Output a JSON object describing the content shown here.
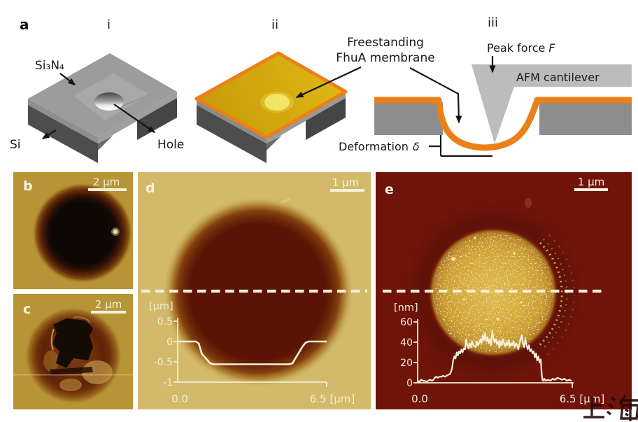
{
  "panel_a": {
    "label": "a",
    "step_i": {
      "label": "i",
      "layer_top": "Si₃N₄",
      "layer_base": "Si",
      "hole": "Hole"
    },
    "step_ii": {
      "label": "ii",
      "annotation_line1": "Freestanding",
      "annotation_line2": "FhuA membrane"
    },
    "step_iii": {
      "label": "iii",
      "peak_force": "Peak force",
      "force_symbol": "F",
      "cantilever": "AFM cantilever",
      "deformation": "Deformation",
      "delta_symbol": "δ"
    }
  },
  "panel_b": {
    "label": "b",
    "scale_bar": "2 µm"
  },
  "panel_c": {
    "label": "c",
    "scale_bar": "2 µm"
  },
  "panel_d": {
    "label": "d",
    "scale_bar": "1 µm"
  },
  "panel_e": {
    "label": "e",
    "scale_bar": "1 µm"
  },
  "watermark": "上海",
  "colors": {
    "afm_gold_bg": "#b79435",
    "afm_khaki_bg": "#d2ba6a",
    "afm_dark_red_bg": "#701409",
    "membrane_orange": "#ea8118",
    "membrane_gold_top": "#d3a70d",
    "silicon_gray": "#4d4d4d",
    "nitride_gray": "#9c9c9c",
    "cantilever_gray": "#bcbcbc",
    "profile_line": "#f5efda"
  },
  "chart_data": [
    {
      "type": "line",
      "panel": "d",
      "y_axis_label": "[µm]",
      "y_ticks": [
        0.5,
        0,
        -0.5,
        -1
      ],
      "y_tick_labels": [
        "0.5",
        "0",
        "-0.5",
        "-1"
      ],
      "x_start_label": "0.0",
      "x_end_label": "6.5 [µm]",
      "xlim": [
        0,
        6.5
      ],
      "ylim": [
        -1,
        0.5
      ],
      "x": [
        0,
        0.8,
        0.92,
        1.05,
        1.42,
        1.55,
        4.85,
        5.0,
        5.45,
        5.58,
        5.72,
        6.5
      ],
      "y": [
        0,
        0,
        -0.05,
        -0.3,
        -0.54,
        -0.56,
        -0.56,
        -0.54,
        -0.12,
        -0.03,
        0,
        0
      ]
    },
    {
      "type": "line",
      "panel": "e",
      "y_axis_label": "[nm]",
      "y_ticks": [
        60,
        40,
        20,
        0
      ],
      "y_tick_labels": [
        "60",
        "40",
        "20",
        "0"
      ],
      "x_start_label": "0.0",
      "x_end_label": "6.5 [µm]",
      "xlim": [
        0,
        6.5
      ],
      "ylim": [
        0,
        60
      ],
      "x": [
        0,
        0.07,
        0.15,
        0.22,
        0.3,
        0.37,
        0.45,
        0.52,
        0.6,
        0.67,
        0.72,
        0.78,
        0.85,
        0.92,
        1.0,
        1.08,
        1.15,
        1.22,
        1.3,
        1.38,
        1.45,
        1.5,
        1.55,
        1.6,
        1.65,
        1.7,
        1.75,
        1.8,
        1.85,
        1.9,
        1.95,
        2.0,
        2.05,
        2.1,
        2.15,
        2.2,
        2.25,
        2.3,
        2.35,
        2.4,
        2.45,
        2.5,
        2.55,
        2.6,
        2.65,
        2.7,
        2.75,
        2.8,
        2.85,
        2.9,
        2.95,
        3.0,
        3.05,
        3.1,
        3.15,
        3.2,
        3.25,
        3.3,
        3.35,
        3.4,
        3.45,
        3.5,
        3.55,
        3.6,
        3.65,
        3.7,
        3.75,
        3.8,
        3.85,
        3.9,
        3.95,
        4.0,
        4.05,
        4.1,
        4.15,
        4.2,
        4.25,
        4.3,
        4.35,
        4.4,
        4.45,
        4.5,
        4.55,
        4.6,
        4.65,
        4.7,
        4.75,
        4.8,
        4.85,
        4.9,
        4.95,
        5.0,
        5.05,
        5.1,
        5.15,
        5.2,
        5.24,
        5.27,
        5.3,
        5.35,
        5.4,
        5.5,
        5.6,
        5.7,
        5.8,
        5.9,
        6.0,
        6.1,
        6.2,
        6.3,
        6.4,
        6.5
      ],
      "y": [
        2,
        1,
        3,
        2,
        2,
        1,
        2,
        3,
        2,
        3,
        5,
        6,
        5,
        6,
        6,
        7,
        6,
        7,
        8,
        9,
        14,
        22,
        26,
        24,
        30,
        27,
        31,
        29,
        33,
        30,
        34,
        33,
        43,
        37,
        34,
        39,
        35,
        41,
        37,
        36,
        35,
        41,
        37,
        39,
        43,
        39,
        47,
        42,
        49,
        41,
        45,
        39,
        43,
        37,
        51,
        44,
        40,
        43,
        38,
        41,
        35,
        41,
        37,
        43,
        39,
        36,
        40,
        37,
        42,
        36,
        39,
        37,
        41,
        35,
        39,
        37,
        33,
        39,
        43,
        47,
        39,
        35,
        43,
        37,
        33,
        37,
        31,
        33,
        29,
        31,
        25,
        29,
        22,
        26,
        20,
        23,
        8,
        3,
        2,
        4,
        2,
        3,
        2,
        4,
        3,
        5,
        4,
        3,
        4,
        2,
        3,
        2
      ]
    }
  ]
}
